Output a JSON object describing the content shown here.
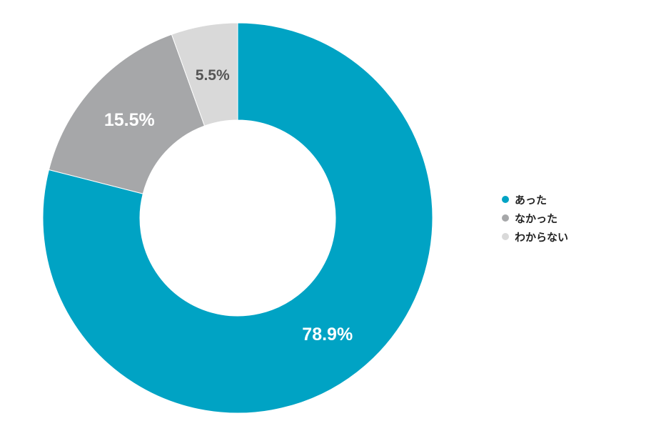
{
  "chart_data": {
    "type": "pie",
    "donut": true,
    "start": "top",
    "direction": "clockwise",
    "categories": [
      "あった",
      "なかった",
      "わからない"
    ],
    "values": [
      78.9,
      15.5,
      5.5
    ],
    "labels": [
      "78.9%",
      "15.5%",
      "5.5%"
    ],
    "colors": [
      "#00A3C4",
      "#A6A7A9",
      "#D9D9D9"
    ],
    "label_colors": [
      "#FFFFFF",
      "#FFFFFF",
      "#555555"
    ],
    "legend_position": "right"
  }
}
